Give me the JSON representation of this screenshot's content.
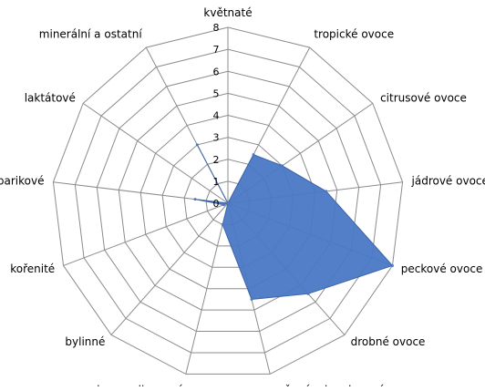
{
  "chart_data": {
    "type": "radar",
    "categories": [
      "květnaté",
      "tropické ovoce",
      "citrusové ovoce",
      "jádrové ovoce",
      "peckové ovoce",
      "drobné ovoce",
      "sušené a kandované ovoce",
      "karamelizované",
      "bylinné",
      "kořenité",
      "barikové",
      "laktátové",
      "minerální a ostatní"
    ],
    "series": [
      {
        "values": [
          0,
          2.5,
          3,
          4.5,
          8,
          5.5,
          4.5,
          1,
          0,
          0.2,
          1.5,
          0,
          3
        ],
        "color": "#4a78c5"
      }
    ],
    "r_range": [
      0,
      8
    ],
    "ticks": [
      "0",
      "1",
      "2",
      "3",
      "4",
      "5",
      "6",
      "7",
      "8"
    ],
    "grid": true,
    "legend": false
  }
}
